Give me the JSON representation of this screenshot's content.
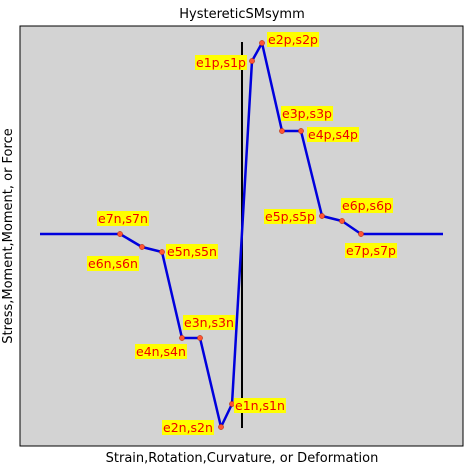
{
  "title": "HystereticSMsymm",
  "xlabel": "Strain,Rotation,Curvature, or Deformation",
  "ylabel": "Stress,Moment,Moment, or Force",
  "colors": {
    "plot_background": "#d3d3d3",
    "curve": "#0000dd",
    "marker": "#ff5533",
    "label_text": "#ee0000",
    "label_background": "#ffff00",
    "axis_line": "#000000"
  },
  "points": [
    {
      "id": "e7n",
      "label": "e7n,s7n"
    },
    {
      "id": "e6n",
      "label": "e6n,s6n"
    },
    {
      "id": "e5n",
      "label": "e5n,s5n"
    },
    {
      "id": "e4n",
      "label": "e4n,s4n"
    },
    {
      "id": "e3n",
      "label": "e3n,s3n"
    },
    {
      "id": "e2n",
      "label": "e2n,s2n"
    },
    {
      "id": "e1n",
      "label": "e1n,s1n"
    },
    {
      "id": "e1p",
      "label": "e1p,s1p"
    },
    {
      "id": "e2p",
      "label": "e2p,s2p"
    },
    {
      "id": "e3p",
      "label": "e3p,s3p"
    },
    {
      "id": "e4p",
      "label": "e4p,s4p"
    },
    {
      "id": "e5p",
      "label": "e5p,s5p"
    },
    {
      "id": "e6p",
      "label": "e6p,s6p"
    },
    {
      "id": "e7p",
      "label": "e7p,s7p"
    }
  ]
}
